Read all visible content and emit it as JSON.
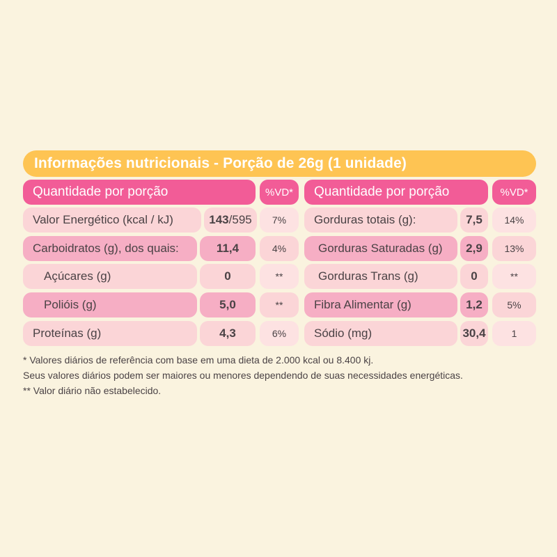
{
  "title": "Informações nutricionais - Porção de 26g (1 unidade)",
  "headers": {
    "left_label": "Quantidade por porção",
    "left_vd": "%VD*",
    "right_label": "Quantidade por porção",
    "right_vd": "%VD*"
  },
  "left_rows": [
    {
      "name": "Valor Energético (kcal / kJ)",
      "value_bold": "143",
      "value_rest": "/595",
      "vd": "7%"
    },
    {
      "name": "Carboidratos (g), dos quais:",
      "value_bold": "11,4",
      "value_rest": "",
      "vd": "4%"
    },
    {
      "name": "Açúcares (g)",
      "value_bold": "0",
      "value_rest": "",
      "vd": "**"
    },
    {
      "name": "Polióis (g)",
      "value_bold": "5,0",
      "value_rest": "",
      "vd": "**"
    },
    {
      "name": "Proteínas (g)",
      "value_bold": "4,3",
      "value_rest": "",
      "vd": "6%"
    }
  ],
  "right_rows": [
    {
      "name": "Gorduras totais (g):",
      "value": "7,5",
      "vd": "14%"
    },
    {
      "name": "Gorduras Saturadas (g)",
      "value": "2,9",
      "vd": "13%"
    },
    {
      "name": "Gorduras Trans (g)",
      "value": "0",
      "vd": "**"
    },
    {
      "name": "Fibra Alimentar (g)",
      "value": "1,2",
      "vd": "5%"
    },
    {
      "name": "Sódio (mg)",
      "value": "30,4",
      "vd": "1"
    }
  ],
  "footnotes": [
    "* Valores diários de referência com base em uma dieta de 2.000 kcal ou 8.400 kj.",
    "Seus valores diários podem ser maiores ou menores dependendo de suas necessidades energéticas.",
    "** Valor diário não estabelecido."
  ],
  "colors": {
    "background": "#faf3df",
    "title_bar": "#fec453",
    "header": "#f25c97",
    "cell_dark": "#f6aec4",
    "cell_light": "#fbd5d7",
    "cell_lighter": "#fde2e2"
  }
}
